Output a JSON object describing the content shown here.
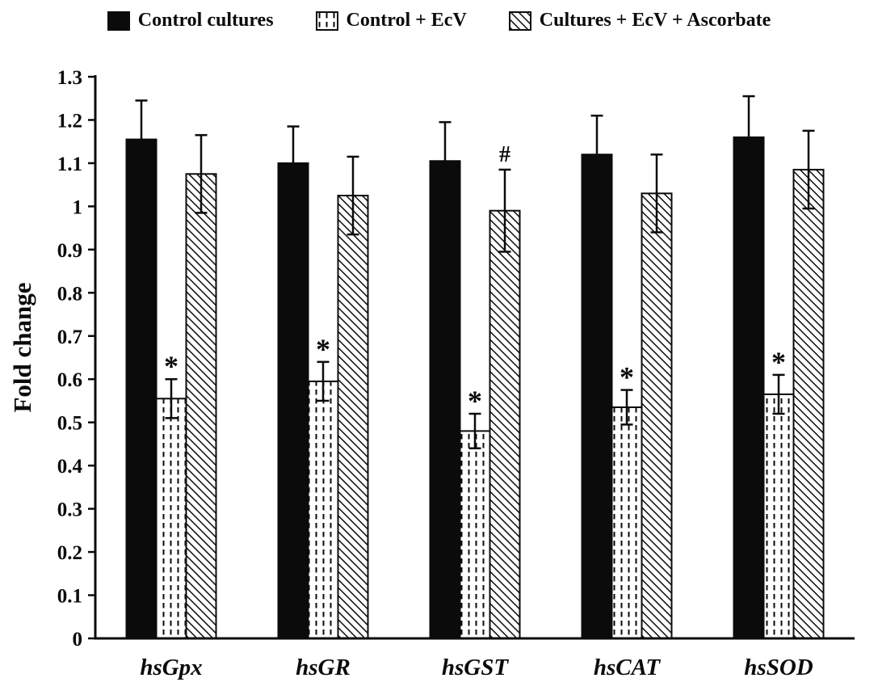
{
  "chart_data": {
    "type": "bar",
    "title": "",
    "xlabel": "",
    "ylabel": "Fold change",
    "ylim": [
      0,
      1.3
    ],
    "ytick_labels": [
      "0",
      "0.1",
      "0.2",
      "0.3",
      "0.4",
      "0.5",
      "0.6",
      "0.7",
      "0.8",
      "0.9",
      "1",
      "1.1",
      "1.2",
      "1.3"
    ],
    "grid": false,
    "legend_position": "top",
    "categories": [
      "hsGpx",
      "hsGR",
      "hsGST",
      "hsCAT",
      "hsSOD"
    ],
    "series": [
      {
        "name": "Control cultures",
        "pattern": "solid-black",
        "values": [
          1.155,
          1.1,
          1.105,
          1.12,
          1.16
        ],
        "errors": [
          0.09,
          0.085,
          0.09,
          0.09,
          0.095
        ],
        "annotations": [
          "",
          "",
          "",
          "",
          ""
        ]
      },
      {
        "name": "Control + EcV",
        "pattern": "dotted",
        "values": [
          0.555,
          0.595,
          0.48,
          0.535,
          0.565
        ],
        "errors": [
          0.045,
          0.045,
          0.04,
          0.04,
          0.045
        ],
        "annotations": [
          "*",
          "*",
          "*",
          "*",
          "*"
        ]
      },
      {
        "name": "Cultures + EcV + Ascorbate",
        "pattern": "diagonal-hatch",
        "values": [
          1.075,
          1.025,
          0.99,
          1.03,
          1.085
        ],
        "errors": [
          0.09,
          0.09,
          0.095,
          0.09,
          0.09
        ],
        "annotations": [
          "",
          "",
          "#",
          "",
          ""
        ]
      }
    ],
    "colors": {
      "bar_fill_solid": "#0b0b0b",
      "bar_outline": "#0b0b0b",
      "axis": "#0b0b0b",
      "background": "#ffffff"
    }
  }
}
